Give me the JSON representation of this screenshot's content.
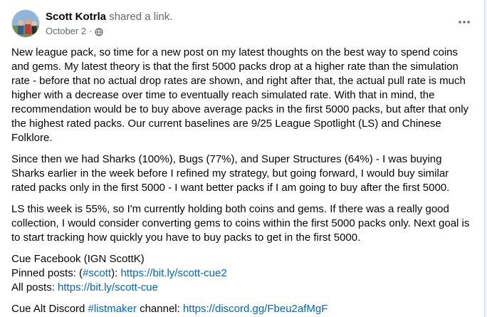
{
  "post": {
    "author": "Scott Kotrla",
    "action": "shared a link.",
    "date": "October 2",
    "separator": "·",
    "privacy_icon": "globe-icon",
    "more_icon": "more-horizontal-icon",
    "paragraphs": {
      "p1": "New league pack, so time for a new post on my latest thoughts on the best way to spend coins and gems.  My latest theory is that the first 5000 packs drop at a higher rate than the simulation rate - before that no actual drop rates are shown, and right after that, the actual pull rate is much higher with a decrease over time to eventually reach simulated rate.  With that in mind, the recommendation would be to buy above average packs in the first 5000 packs, but after that only the highest rated packs.  Our current baselines are 9/25 League Spotlight (LS) and Chinese Folklore.",
      "p2": "Since then we had Sharks (100%), Bugs (77%), and Super Structures (64%) - I was buying Sharks earlier in the week before I refined my strategy, but going forward, I would buy similar rated packs only in the first 5000 - I want better packs if I am going to buy after the first 5000.",
      "p3": "LS this week is 55%, so I'm currently holding both coins and gems.  If there was a really good collection, I would consider converting gems to coins within the first 5000 packs only.  Next goal is to start tracking how quickly you have to buy packs to get in the first 5000."
    },
    "links_block": {
      "cue_facebook": "Cue Facebook (IGN ScottK)",
      "pinned_prefix": "Pinned posts: (",
      "pinned_hashtag": "#scott",
      "pinned_mid": "): ",
      "pinned_url": "https://bit.ly/scott-cue2",
      "all_prefix": "All posts: ",
      "all_url": "https://bit.ly/scott-cue"
    },
    "discord": {
      "prefix": "Cue Alt Discord ",
      "hashtag": "#listmaker",
      "mid": " channel: ",
      "url": "https://discord.gg/Fbeu2afMgF"
    }
  }
}
